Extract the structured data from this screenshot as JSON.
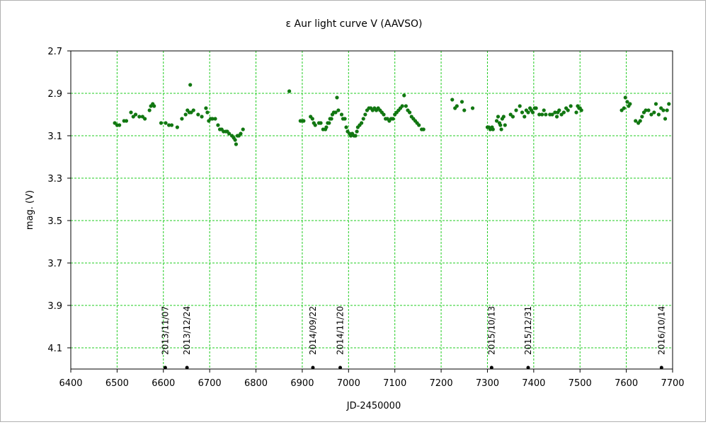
{
  "chart_data": {
    "type": "scatter",
    "title": "ε Aur   light curve  V (AAVSO)",
    "xlabel": "JD-2450000",
    "ylabel": "mag. (V)",
    "xlim": [
      6400,
      7700
    ],
    "ylim": [
      2.7,
      4.2
    ],
    "y_inverted": true,
    "grid": true,
    "grid_color": "#22cc22",
    "point_color": "#117711",
    "marker_color": "#000000",
    "x_ticks": [
      "6400",
      "6500",
      "6600",
      "6700",
      "6800",
      "6900",
      "7000",
      "7100",
      "7200",
      "7300",
      "7400",
      "7500",
      "7600",
      "7700"
    ],
    "y_ticks": [
      "2.7",
      "2.9",
      "3.1",
      "3.3",
      "3.5",
      "3.7",
      "3.9",
      "4.1"
    ],
    "date_markers": [
      {
        "x": 6604,
        "label": "2013/11/07"
      },
      {
        "x": 6651,
        "label": "2013/12/24"
      },
      {
        "x": 6923,
        "label": "2014/09/22"
      },
      {
        "x": 6982,
        "label": "2014/11/20"
      },
      {
        "x": 7309,
        "label": "2015/10/13"
      },
      {
        "x": 7388,
        "label": "2015/12/31"
      },
      {
        "x": 7676,
        "label": "2016/10/14"
      }
    ],
    "points": [
      [
        6495,
        3.04
      ],
      [
        6500,
        3.05
      ],
      [
        6505,
        3.05
      ],
      [
        6515,
        3.03
      ],
      [
        6520,
        3.03
      ],
      [
        6530,
        2.99
      ],
      [
        6535,
        3.01
      ],
      [
        6540,
        3.0
      ],
      [
        6548,
        3.01
      ],
      [
        6555,
        3.01
      ],
      [
        6560,
        3.02
      ],
      [
        6570,
        2.98
      ],
      [
        6573,
        2.96
      ],
      [
        6577,
        2.95
      ],
      [
        6580,
        2.96
      ],
      [
        6595,
        3.04
      ],
      [
        6605,
        3.04
      ],
      [
        6612,
        3.05
      ],
      [
        6618,
        3.05
      ],
      [
        6630,
        3.06
      ],
      [
        6640,
        3.02
      ],
      [
        6648,
        3.0
      ],
      [
        6652,
        2.98
      ],
      [
        6656,
        2.99
      ],
      [
        6658,
        2.86
      ],
      [
        6660,
        2.99
      ],
      [
        6665,
        2.98
      ],
      [
        6675,
        3.0
      ],
      [
        6683,
        3.01
      ],
      [
        6692,
        2.97
      ],
      [
        6695,
        2.99
      ],
      [
        6698,
        3.03
      ],
      [
        6702,
        3.02
      ],
      [
        6706,
        3.02
      ],
      [
        6712,
        3.02
      ],
      [
        6718,
        3.05
      ],
      [
        6722,
        3.07
      ],
      [
        6726,
        3.07
      ],
      [
        6730,
        3.08
      ],
      [
        6735,
        3.08
      ],
      [
        6738,
        3.08
      ],
      [
        6742,
        3.09
      ],
      [
        6748,
        3.1
      ],
      [
        6752,
        3.11
      ],
      [
        6755,
        3.12
      ],
      [
        6757,
        3.14
      ],
      [
        6760,
        3.1
      ],
      [
        6763,
        3.1
      ],
      [
        6767,
        3.09
      ],
      [
        6772,
        3.07
      ],
      [
        6872,
        2.89
      ],
      [
        6896,
        3.03
      ],
      [
        6900,
        3.03
      ],
      [
        6903,
        3.03
      ],
      [
        6918,
        3.01
      ],
      [
        6922,
        3.02
      ],
      [
        6925,
        3.04
      ],
      [
        6928,
        3.05
      ],
      [
        6936,
        3.04
      ],
      [
        6940,
        3.04
      ],
      [
        6945,
        3.07
      ],
      [
        6950,
        3.07
      ],
      [
        6952,
        3.06
      ],
      [
        6955,
        3.04
      ],
      [
        6958,
        3.04
      ],
      [
        6960,
        3.02
      ],
      [
        6963,
        3.02
      ],
      [
        6965,
        3.0
      ],
      [
        6968,
        2.99
      ],
      [
        6972,
        2.99
      ],
      [
        6975,
        2.92
      ],
      [
        6978,
        2.98
      ],
      [
        6985,
        3.0
      ],
      [
        6988,
        3.02
      ],
      [
        6992,
        3.02
      ],
      [
        6995,
        3.06
      ],
      [
        6998,
        3.08
      ],
      [
        7002,
        3.09
      ],
      [
        7005,
        3.1
      ],
      [
        7008,
        3.09
      ],
      [
        7012,
        3.1
      ],
      [
        7015,
        3.1
      ],
      [
        7018,
        3.08
      ],
      [
        7020,
        3.06
      ],
      [
        7024,
        3.05
      ],
      [
        7028,
        3.04
      ],
      [
        7032,
        3.02
      ],
      [
        7036,
        3.0
      ],
      [
        7040,
        2.98
      ],
      [
        7044,
        2.97
      ],
      [
        7048,
        2.97
      ],
      [
        7052,
        2.98
      ],
      [
        7056,
        2.97
      ],
      [
        7060,
        2.98
      ],
      [
        7064,
        2.97
      ],
      [
        7068,
        2.98
      ],
      [
        7072,
        2.99
      ],
      [
        7076,
        3.0
      ],
      [
        7080,
        3.02
      ],
      [
        7084,
        3.02
      ],
      [
        7088,
        3.03
      ],
      [
        7092,
        3.02
      ],
      [
        7096,
        3.02
      ],
      [
        7100,
        3.0
      ],
      [
        7104,
        2.99
      ],
      [
        7108,
        2.98
      ],
      [
        7112,
        2.97
      ],
      [
        7116,
        2.96
      ],
      [
        7120,
        2.91
      ],
      [
        7124,
        2.96
      ],
      [
        7128,
        2.98
      ],
      [
        7132,
        2.99
      ],
      [
        7136,
        3.01
      ],
      [
        7140,
        3.02
      ],
      [
        7144,
        3.03
      ],
      [
        7148,
        3.04
      ],
      [
        7152,
        3.05
      ],
      [
        7158,
        3.07
      ],
      [
        7162,
        3.07
      ],
      [
        7224,
        2.93
      ],
      [
        7230,
        2.97
      ],
      [
        7234,
        2.96
      ],
      [
        7245,
        2.94
      ],
      [
        7250,
        2.98
      ],
      [
        7268,
        2.97
      ],
      [
        7300,
        3.06
      ],
      [
        7303,
        3.06
      ],
      [
        7306,
        3.07
      ],
      [
        7310,
        3.06
      ],
      [
        7312,
        3.07
      ],
      [
        7320,
        3.03
      ],
      [
        7323,
        3.01
      ],
      [
        7326,
        3.04
      ],
      [
        7328,
        3.05
      ],
      [
        7330,
        3.07
      ],
      [
        7332,
        3.02
      ],
      [
        7335,
        3.01
      ],
      [
        7338,
        3.05
      ],
      [
        7350,
        3.0
      ],
      [
        7355,
        3.01
      ],
      [
        7362,
        2.98
      ],
      [
        7370,
        2.96
      ],
      [
        7375,
        2.99
      ],
      [
        7380,
        3.01
      ],
      [
        7384,
        2.98
      ],
      [
        7388,
        2.99
      ],
      [
        7392,
        2.97
      ],
      [
        7395,
        2.98
      ],
      [
        7398,
        2.99
      ],
      [
        7402,
        2.97
      ],
      [
        7405,
        2.97
      ],
      [
        7412,
        3.0
      ],
      [
        7418,
        3.0
      ],
      [
        7422,
        2.98
      ],
      [
        7426,
        3.0
      ],
      [
        7435,
        3.0
      ],
      [
        7440,
        3.0
      ],
      [
        7446,
        2.99
      ],
      [
        7450,
        3.01
      ],
      [
        7452,
        2.99
      ],
      [
        7455,
        2.98
      ],
      [
        7460,
        3.0
      ],
      [
        7465,
        2.99
      ],
      [
        7470,
        2.97
      ],
      [
        7474,
        2.98
      ],
      [
        7480,
        2.96
      ],
      [
        7492,
        2.99
      ],
      [
        7495,
        2.96
      ],
      [
        7498,
        2.97
      ],
      [
        7500,
        2.97
      ],
      [
        7503,
        2.98
      ],
      [
        7590,
        2.98
      ],
      [
        7595,
        2.97
      ],
      [
        7598,
        2.92
      ],
      [
        7602,
        2.94
      ],
      [
        7605,
        2.96
      ],
      [
        7608,
        2.95
      ],
      [
        7620,
        3.03
      ],
      [
        7626,
        3.04
      ],
      [
        7630,
        3.03
      ],
      [
        7634,
        3.01
      ],
      [
        7638,
        2.99
      ],
      [
        7642,
        2.98
      ],
      [
        7648,
        2.98
      ],
      [
        7654,
        3.0
      ],
      [
        7660,
        2.99
      ],
      [
        7664,
        2.95
      ],
      [
        7670,
        3.0
      ],
      [
        7675,
        2.97
      ],
      [
        7680,
        2.98
      ],
      [
        7684,
        3.02
      ],
      [
        7688,
        2.98
      ],
      [
        7692,
        2.95
      ]
    ]
  }
}
